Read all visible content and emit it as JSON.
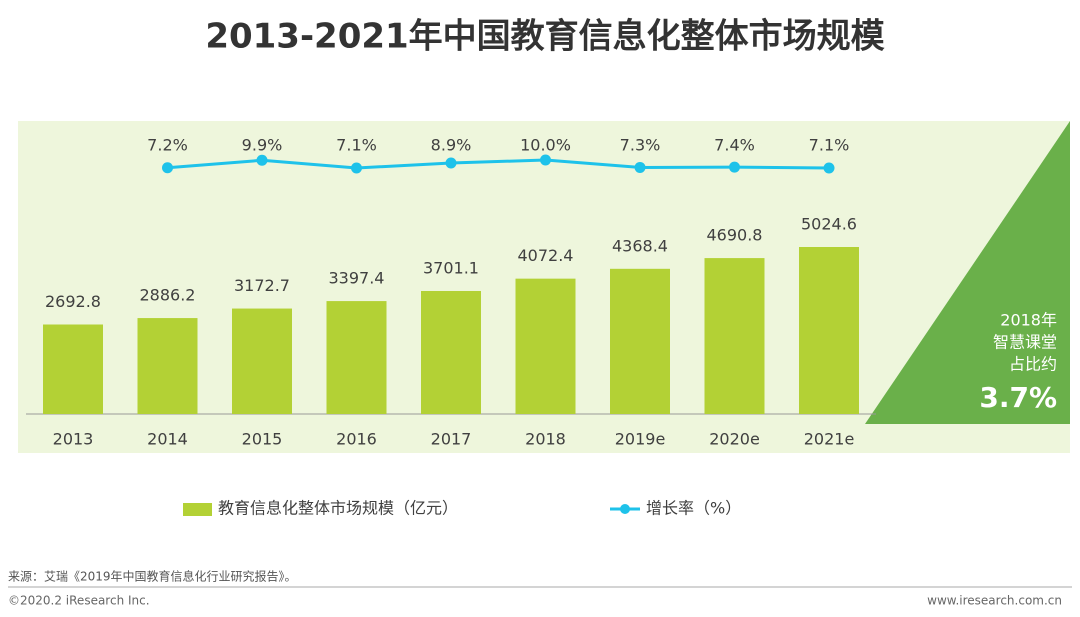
{
  "chart_data": {
    "type": "bar-line",
    "title": "2013-2021年中国教育信息化整体市场规模",
    "categories": [
      "2013",
      "2014",
      "2015",
      "2016",
      "2017",
      "2018",
      "2019e",
      "2020e",
      "2021e"
    ],
    "series": [
      {
        "name": "教育信息化整体市场规模（亿元）",
        "type": "bar",
        "color": "#b3d135",
        "values": [
          2692.8,
          2886.2,
          3172.7,
          3397.4,
          3701.1,
          4072.4,
          4368.4,
          4690.8,
          5024.6
        ]
      },
      {
        "name": "增长率（%）",
        "type": "line",
        "color": "#1ec2ea",
        "values": [
          null,
          7.2,
          9.9,
          7.1,
          8.9,
          10.0,
          7.3,
          7.4,
          7.1
        ],
        "value_labels": [
          null,
          "7.2%",
          "9.9%",
          "7.1%",
          "8.9%",
          "10.0%",
          "7.3%",
          "7.4%",
          "7.1%"
        ]
      }
    ],
    "annotation": {
      "lines": [
        "2018年",
        "智慧课堂",
        "占比约"
      ],
      "value": "3.7%"
    },
    "source": "来源：艾瑞《2019年中国教育信息化行业研究报告》。",
    "copyright": "©2020.2 iResearch Inc.",
    "website": "www.iresearch.com.cn"
  }
}
